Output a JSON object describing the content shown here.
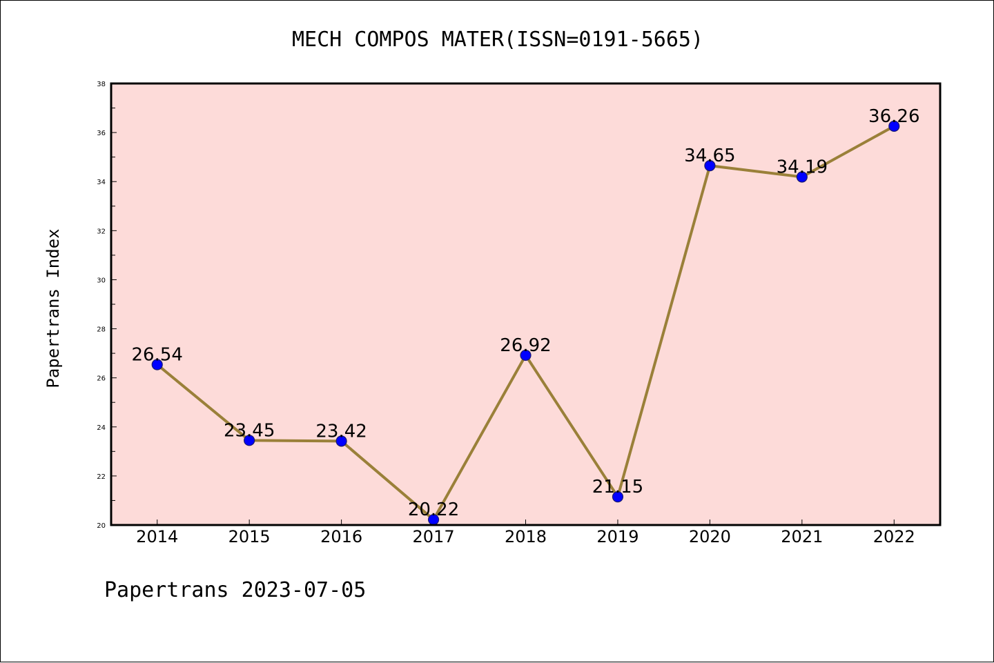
{
  "chart_data": {
    "type": "line",
    "title": "MECH COMPOS MATER(ISSN=0191-5665)",
    "xlabel": "",
    "ylabel": "Papertrans Index",
    "categories": [
      "2014",
      "2015",
      "2016",
      "2017",
      "2018",
      "2019",
      "2020",
      "2021",
      "2022"
    ],
    "series": [
      {
        "values": [
          26.54,
          23.45,
          23.42,
          20.22,
          26.92,
          21.15,
          34.65,
          34.19,
          36.26
        ],
        "labels": [
          "26.54",
          "23.45",
          "23.42",
          "20.22",
          "26.92",
          "21.15",
          "34.65",
          "34.19",
          "36.26"
        ]
      }
    ],
    "ylim": [
      20,
      38
    ],
    "yticks": [
      "20",
      "22",
      "24",
      "26",
      "28",
      "30",
      "32",
      "34",
      "36",
      "38"
    ],
    "grid": false,
    "legend": "none",
    "colors": {
      "plot_background": "#fddbd9",
      "line": "#9a8039",
      "marker": "#0000ff",
      "marker_edge": "#1a1a6e"
    }
  },
  "footer": "Papertrans 2023-07-05"
}
